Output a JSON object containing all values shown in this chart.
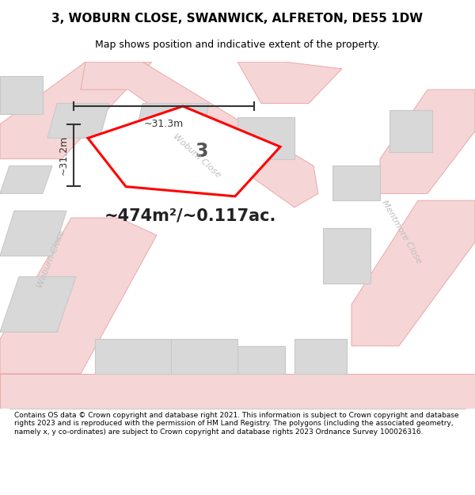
{
  "title": "3, WOBURN CLOSE, SWANWICK, ALFRETON, DE55 1DW",
  "subtitle": "Map shows position and indicative extent of the property.",
  "area_text": "~474m²/~0.117ac.",
  "label_number": "3",
  "dim_vertical": "~31.2m",
  "dim_horizontal": "~31.3m",
  "footer": "Contains OS data © Crown copyright and database right 2021. This information is subject to Crown copyright and database rights 2023 and is reproduced with the permission of HM Land Registry. The polygons (including the associated geometry, namely x, y co-ordinates) are subject to Crown copyright and database rights 2023 Ordnance Survey 100026316.",
  "bg_color": "#ffffff",
  "map_bg": "#f0f0f0",
  "road_color": "#f5d5d5",
  "road_line_color": "#e8a0a0",
  "building_color": "#d8d8d8",
  "building_edge": "#c8c8c8",
  "plot_color": "#ff0000",
  "woburn_label": "Woburn Close",
  "mentmore_label": "Mentmore Close",
  "woburn_left_label": "Woburn Close"
}
